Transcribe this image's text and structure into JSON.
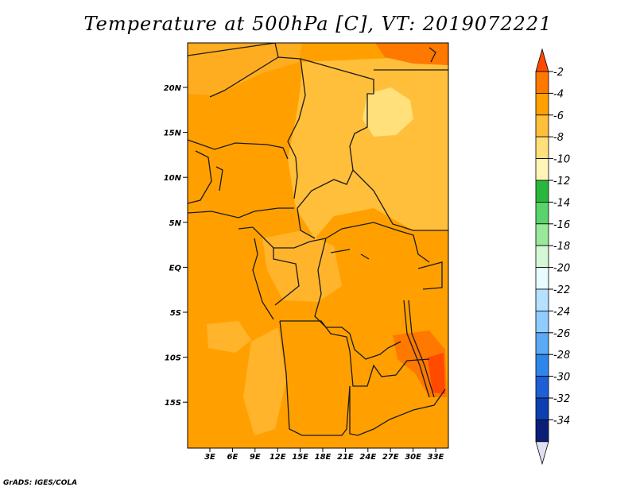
{
  "title": "Temperature at 500hPa [C], VT: 2019072221",
  "credit": "GrADS: IGES/COLA",
  "map": {
    "lat_ticks": [
      "20N",
      "15N",
      "10N",
      "5N",
      "EQ",
      "5S",
      "10S",
      "15S"
    ],
    "lon_ticks": [
      "3E",
      "6E",
      "9E",
      "12E",
      "15E",
      "18E",
      "21E",
      "24E",
      "27E",
      "30E",
      "33E"
    ],
    "base_color": "#ffa000"
  },
  "colorbar": {
    "labels": [
      "-2",
      "-4",
      "-6",
      "-8",
      "-10",
      "-12",
      "-14",
      "-16",
      "-18",
      "-20",
      "-22",
      "-24",
      "-26",
      "-28",
      "-30",
      "-32",
      "-34"
    ],
    "colors": [
      "#ff4a00",
      "#ff7800",
      "#ffa000",
      "#ffbf3a",
      "#ffe07a",
      "#fff5b8",
      "#2ab83c",
      "#5ad46a",
      "#9ae89a",
      "#d6f7d6",
      "#e8fbff",
      "#b6e0ff",
      "#8fccff",
      "#5aaaf5",
      "#2f86ea",
      "#1e5fd6",
      "#0d3fb0",
      "#0a1e78",
      "#e0e0f5"
    ]
  }
}
